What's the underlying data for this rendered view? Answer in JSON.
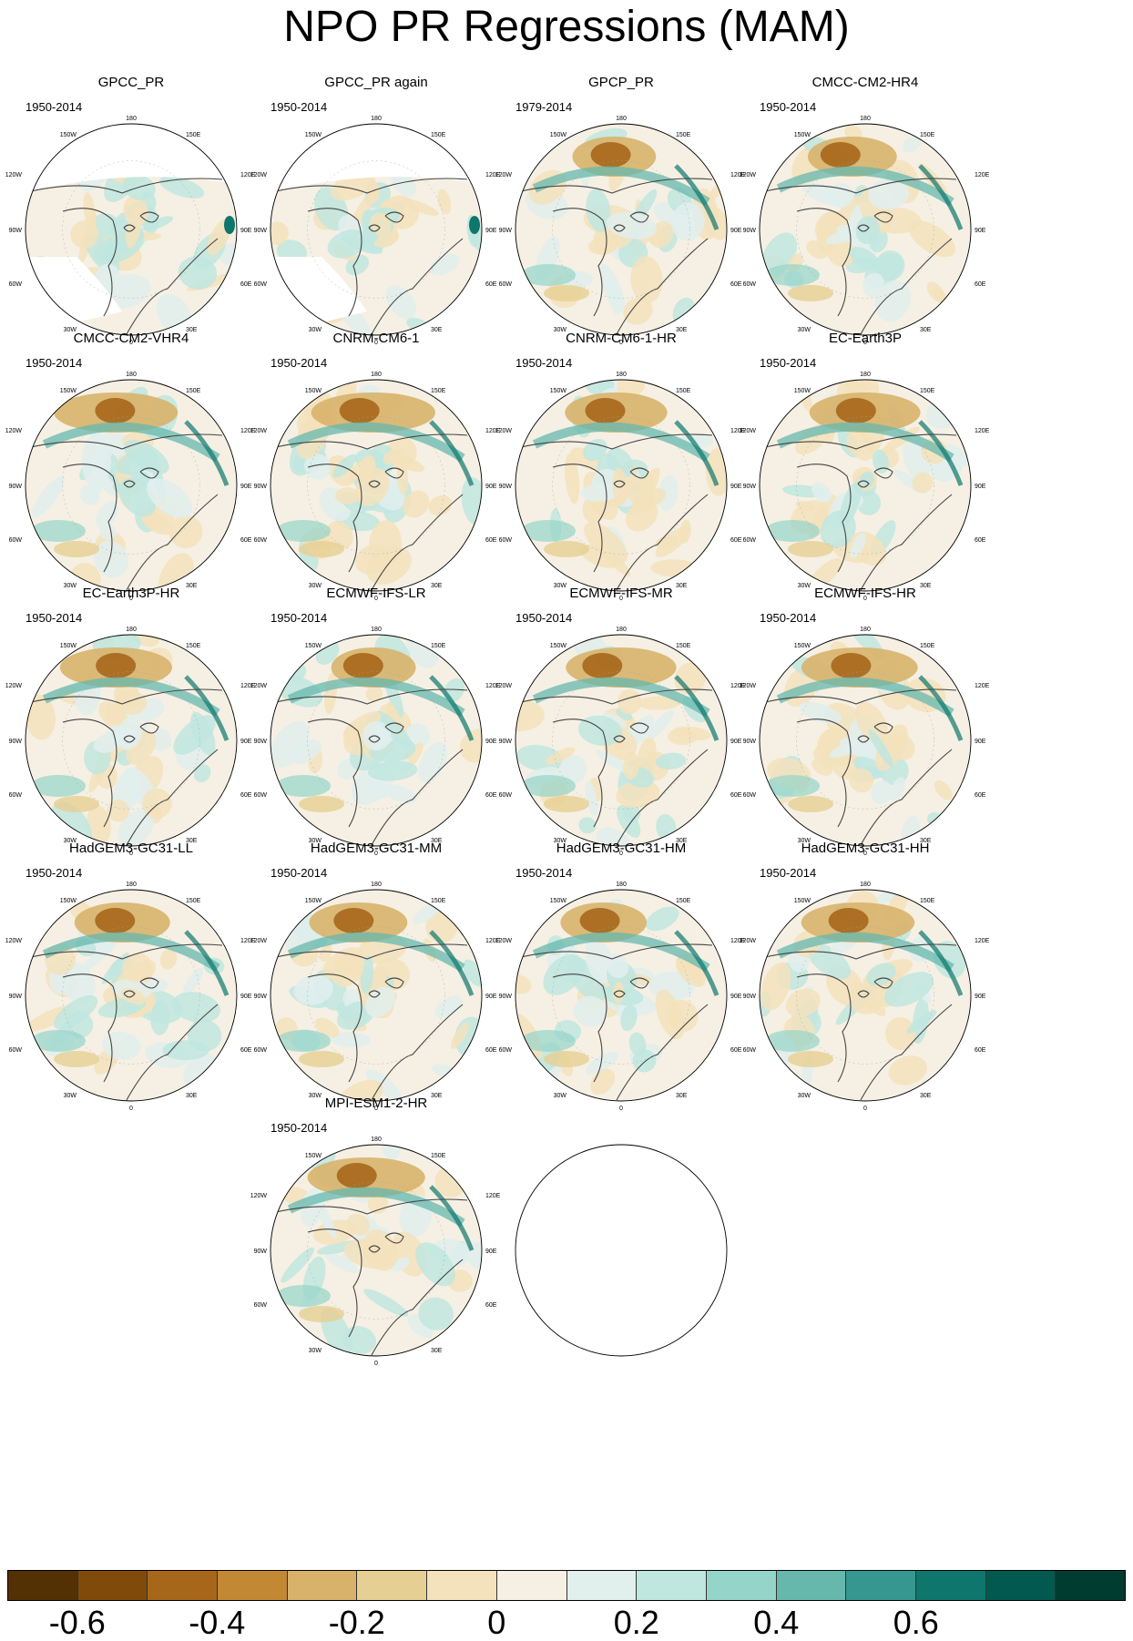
{
  "title": "NPO PR Regressions (MAM)",
  "axis_labels": {
    "top": "180",
    "top_left": "150W",
    "top_right": "150E",
    "left_upper": "120W",
    "right_upper": "120E",
    "left_mid": "90W",
    "right_mid": "90E",
    "left_lower": "60W",
    "right_lower": "60E",
    "bottom_left": "30W",
    "bottom_right": "30E",
    "bottom": "0"
  },
  "panels": [
    {
      "name": "GPCC_PR",
      "period": "1950-2014",
      "style": "masked"
    },
    {
      "name": "GPCC_PR again",
      "period": "1950-2014",
      "style": "masked"
    },
    {
      "name": "GPCP_PR",
      "period": "1979-2014",
      "style": "full"
    },
    {
      "name": "CMCC-CM2-HR4",
      "period": "1950-2014",
      "style": "full"
    },
    {
      "name": "CMCC-CM2-VHR4",
      "period": "1950-2014",
      "style": "full"
    },
    {
      "name": "CNRM-CM6-1",
      "period": "1950-2014",
      "style": "full"
    },
    {
      "name": "CNRM-CM6-1-HR",
      "period": "1950-2014",
      "style": "full"
    },
    {
      "name": "EC-Earth3P",
      "period": "1950-2014",
      "style": "full"
    },
    {
      "name": "EC-Earth3P-HR",
      "period": "1950-2014",
      "style": "full"
    },
    {
      "name": "ECMWF-IFS-LR",
      "period": "1950-2014",
      "style": "full"
    },
    {
      "name": "ECMWF-IFS-MR",
      "period": "1950-2014",
      "style": "full"
    },
    {
      "name": "ECMWF-IFS-HR",
      "period": "1950-2014",
      "style": "full"
    },
    {
      "name": "HadGEM3-GC31-LL",
      "period": "1950-2014",
      "style": "full"
    },
    {
      "name": "HadGEM3-GC31-MM",
      "period": "1950-2014",
      "style": "full"
    },
    {
      "name": "HadGEM3-GC31-HM",
      "period": "1950-2014",
      "style": "full"
    },
    {
      "name": "HadGEM3-GC31-HH",
      "period": "1950-2014",
      "style": "full"
    },
    {
      "name": "MPI-ESM1-2-HR",
      "period": "1950-2014",
      "style": "full"
    },
    {
      "name": "",
      "period": "",
      "style": "empty"
    }
  ],
  "colorbar": {
    "colors": [
      "#543005",
      "#7f4a0a",
      "#a6671b",
      "#c38833",
      "#d8b26a",
      "#e6cf92",
      "#f3e2bc",
      "#f5f0e3",
      "#e1efed",
      "#bfe6df",
      "#95d4c9",
      "#66b8ad",
      "#35978f",
      "#0e766c",
      "#01594f",
      "#003c30"
    ],
    "labels": [
      "-0.6",
      "-0.4",
      "-0.2",
      "0",
      "0.2",
      "0.4",
      "0.6"
    ],
    "label_boundaries": [
      1,
      3,
      5,
      7,
      9,
      11,
      13
    ]
  }
}
